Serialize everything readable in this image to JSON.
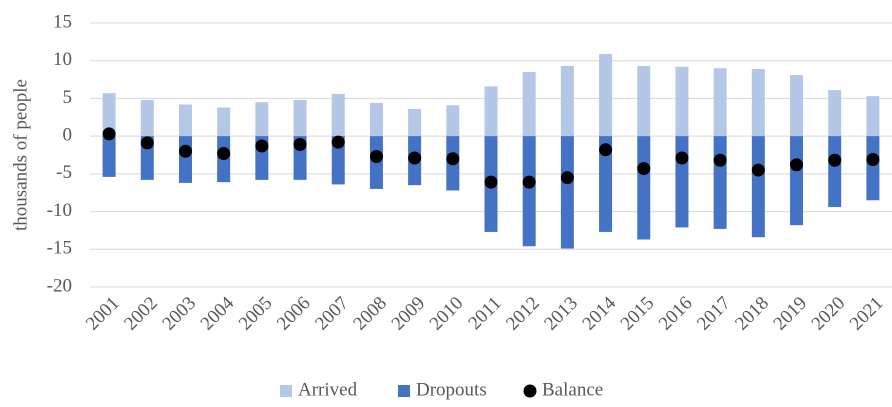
{
  "chart_data": {
    "type": "bar",
    "stacked": true,
    "y_label": "thousands of people",
    "categories": [
      "2001",
      "2002",
      "2003",
      "2004",
      "2005",
      "2006",
      "2007",
      "2008",
      "2009",
      "2010",
      "2011",
      "2012",
      "2013",
      "2014",
      "2015",
      "2016",
      "2017",
      "2018",
      "2019",
      "2020",
      "2021"
    ],
    "series": [
      {
        "name": "Arrived",
        "type": "bar",
        "color": "#b4c7e7",
        "values": [
          5.7,
          4.8,
          4.2,
          3.8,
          4.5,
          4.8,
          5.6,
          4.4,
          3.6,
          4.1,
          6.6,
          8.5,
          9.3,
          10.9,
          9.3,
          9.2,
          9.0,
          8.9,
          8.1,
          6.1,
          5.3
        ]
      },
      {
        "name": "Dropouts",
        "type": "bar",
        "color": "#4472c4",
        "values": [
          -5.4,
          -5.8,
          -6.2,
          -6.1,
          -5.8,
          -5.8,
          -6.4,
          -7.0,
          -6.5,
          -7.2,
          -12.7,
          -14.6,
          -14.9,
          -12.7,
          -13.7,
          -12.1,
          -12.3,
          -13.4,
          -11.8,
          -9.4,
          -8.5
        ]
      },
      {
        "name": "Balance",
        "type": "scatter",
        "color": "#000000",
        "values": [
          0.3,
          -0.9,
          -2.0,
          -2.3,
          -1.3,
          -1.1,
          -0.8,
          -2.7,
          -2.9,
          -3.0,
          -6.1,
          -6.1,
          -5.5,
          -1.8,
          -4.3,
          -2.9,
          -3.2,
          -4.5,
          -3.8,
          -3.2,
          -3.1
        ]
      }
    ],
    "ylim": [
      -20,
      15
    ],
    "yticks": [
      -20,
      -15,
      -10,
      -5,
      0,
      5,
      10,
      15
    ],
    "grid": true,
    "legend": "bottom"
  }
}
